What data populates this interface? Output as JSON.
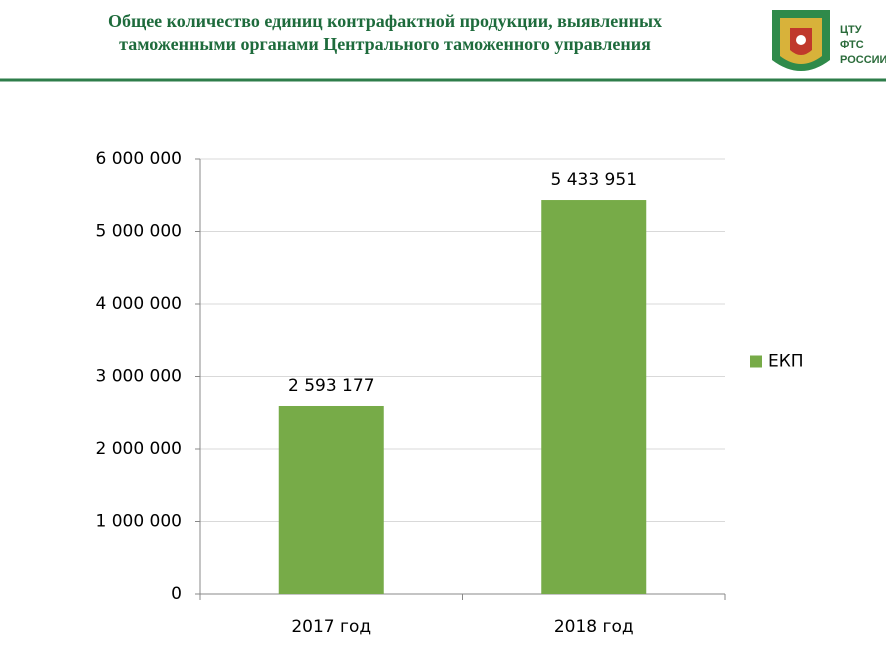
{
  "header": {
    "logo_text": [
      "ЦТУ",
      "ФТС",
      "РОССИИ"
    ]
  },
  "chart_data": {
    "type": "bar",
    "title": [
      "Общее количество единиц контрафактной продукции, выявленных",
      "таможенными органами Центрального таможенного управления"
    ],
    "categories": [
      "2017 год",
      "2018 год"
    ],
    "series": [
      {
        "name": "ЕКП",
        "color": "#77ab48",
        "values": [
          2593177,
          5433951
        ],
        "value_labels": [
          "2 593 177",
          "5 433 951"
        ]
      }
    ],
    "ylim": [
      0,
      6000000
    ],
    "yticks": [
      0,
      {
        "value": 1000000,
        "label": "1 000 000"
      },
      {
        "value": 2000000,
        "label": "2 000 000"
      },
      {
        "value": 3000000,
        "label": "3 000 000"
      },
      {
        "value": 4000000,
        "label": "4 000 000"
      },
      {
        "value": 5000000,
        "label": "5 000 000"
      },
      {
        "value": 6000000,
        "label": "6 000 000"
      }
    ],
    "grid": true,
    "legend": "right"
  }
}
